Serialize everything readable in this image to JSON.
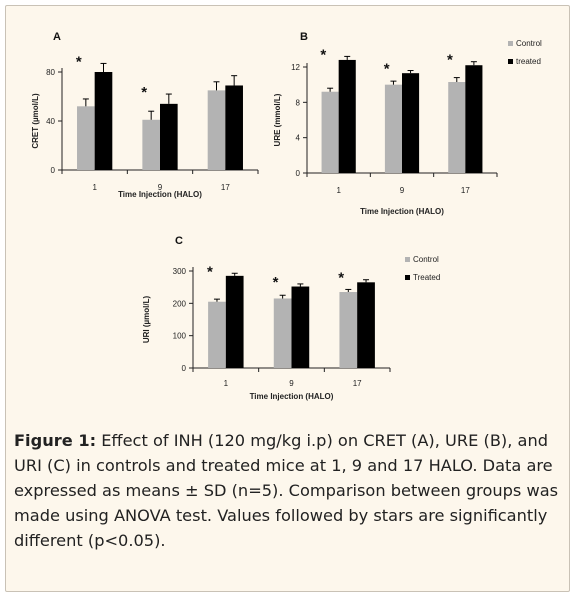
{
  "figure": {
    "caption_label": "Figure 1:",
    "caption_text": " Effect of INH (120 mg/kg i.p) on CRET (A), URE (B), and URI (C) in controls and treated mice at 1, 9 and 17 HALO. Data are expressed as means ± SD (n=5). Comparison between groups was made using ANOVA test. Values followed by stars are significantly different (p<0.05)."
  },
  "colors": {
    "control": "#b3b3b3",
    "treated": "#000000",
    "errorbar": "#000000"
  },
  "chart_data": [
    {
      "type": "bar",
      "panel": "A",
      "categories": [
        "1",
        "9",
        "17"
      ],
      "xlabel": "Time Injection (HALO)",
      "ylabel": "CRET (µmol/L)",
      "ylim": [
        0,
        80
      ],
      "yticks": [
        0,
        40,
        80
      ],
      "legend": [],
      "series": [
        {
          "key": "control",
          "values": [
            52,
            41,
            65
          ],
          "errors": [
            6,
            7,
            7
          ]
        },
        {
          "key": "treated",
          "values": [
            80,
            54,
            69
          ],
          "errors": [
            7,
            8,
            8
          ]
        }
      ],
      "significance": [
        "*",
        "*",
        ""
      ]
    },
    {
      "type": "bar",
      "panel": "B",
      "categories": [
        "1",
        "9",
        "17"
      ],
      "xlabel": "Time Injection (HALO)",
      "ylabel": "URE (mmol/L)",
      "ylim": [
        0,
        12
      ],
      "yticks": [
        0,
        4,
        8,
        12
      ],
      "legend": [
        "Control",
        "treated"
      ],
      "series": [
        {
          "key": "control",
          "name": "Control",
          "values": [
            9.2,
            10.0,
            10.3
          ],
          "errors": [
            0.4,
            0.4,
            0.5
          ]
        },
        {
          "key": "treated",
          "name": "treated",
          "values": [
            12.8,
            11.3,
            12.2
          ],
          "errors": [
            0.4,
            0.3,
            0.4
          ]
        }
      ],
      "significance": [
        "*",
        "*",
        "*"
      ]
    },
    {
      "type": "bar",
      "panel": "C",
      "categories": [
        "1",
        "9",
        "17"
      ],
      "xlabel": "Time Injection (HALO)",
      "ylabel": "URI (µmol/L)",
      "ylim": [
        0,
        300
      ],
      "yticks": [
        0,
        100,
        200,
        300
      ],
      "legend": [
        "Control",
        "Treated"
      ],
      "series": [
        {
          "key": "control",
          "name": "Control",
          "values": [
            205,
            215,
            235
          ],
          "errors": [
            8,
            10,
            8
          ]
        },
        {
          "key": "treated",
          "name": "Treated",
          "values": [
            285,
            252,
            265
          ],
          "errors": [
            8,
            8,
            8
          ]
        }
      ],
      "significance": [
        "*",
        "*",
        "*"
      ]
    }
  ]
}
